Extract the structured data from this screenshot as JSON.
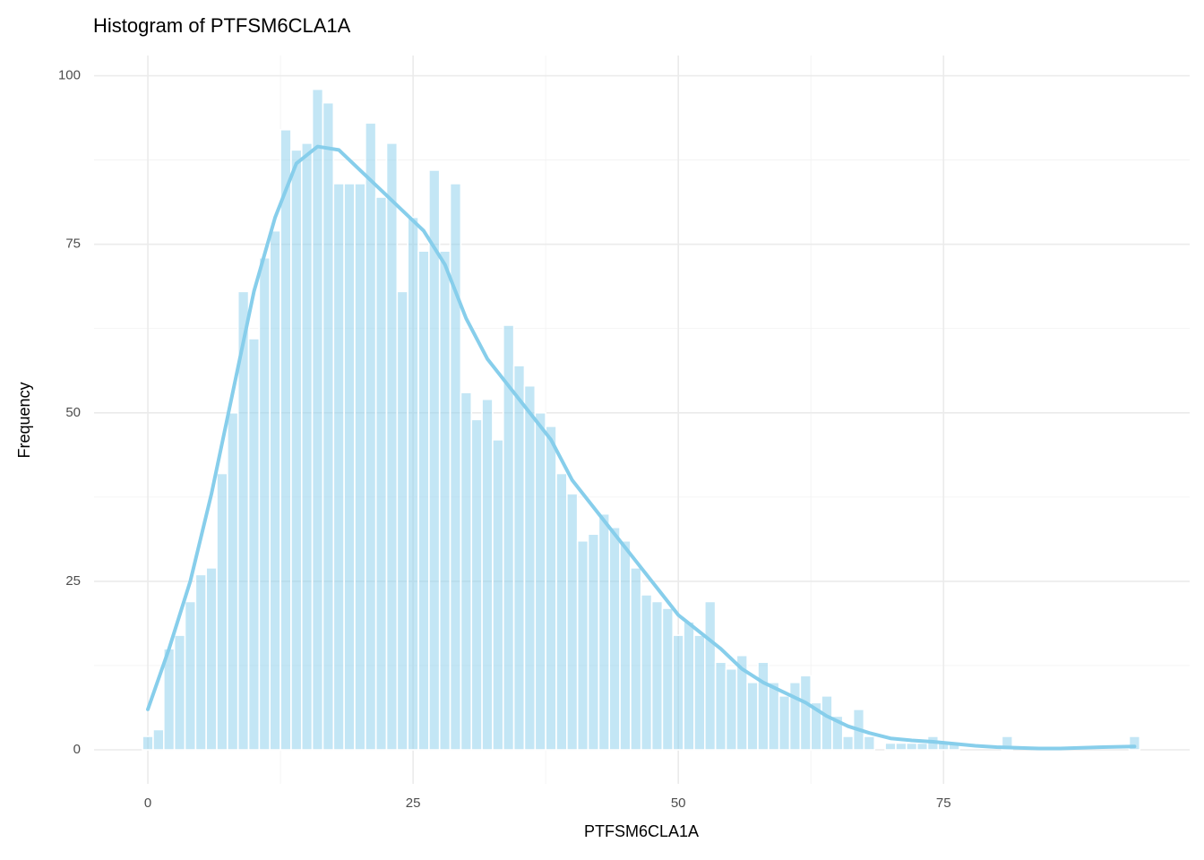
{
  "chart_data": {
    "type": "histogram",
    "title": "Histogram of PTFSM6CLA1A",
    "x_label": "PTFSM6CLA1A",
    "y_label": "Frequency",
    "bins": [
      -0.5,
      0.5,
      1.5,
      2.5,
      3.5,
      4.5,
      5.5,
      6.5,
      7.5,
      8.5,
      9.5,
      10.5,
      11.5,
      12.5,
      13.5,
      14.5,
      15.5,
      16.5,
      17.5,
      18.5,
      19.5,
      20.5,
      21.5,
      22.5,
      23.5,
      24.5,
      25.5,
      26.5,
      27.5,
      28.5,
      29.5,
      30.5,
      31.5,
      32.5,
      33.5,
      34.5,
      35.5,
      36.5,
      37.5,
      38.5,
      39.5,
      40.5,
      41.5,
      42.5,
      43.5,
      44.5,
      45.5,
      46.5,
      47.5,
      48.5,
      49.5,
      50.5,
      51.5,
      52.5,
      53.5,
      54.5,
      55.5,
      56.5,
      57.5,
      58.5,
      59.5,
      60.5,
      61.5,
      62.5,
      63.5,
      64.5,
      65.5,
      66.5,
      67.5,
      68.5,
      69.5,
      70.5,
      71.5,
      72.5,
      73.5,
      74.5,
      75.5,
      76.5,
      77.5,
      78.5,
      79.5,
      80.5,
      81.5,
      82.5,
      83.5,
      84.5,
      85.5,
      86.5,
      87.5,
      88.5,
      89.5,
      90.5,
      91.5,
      92.5,
      93.5
    ],
    "counts": [
      2,
      3,
      15,
      17,
      22,
      26,
      27,
      41,
      50,
      68,
      61,
      73,
      77,
      92,
      89,
      90,
      98,
      96,
      84,
      84,
      84,
      93,
      82,
      90,
      68,
      79,
      74,
      86,
      74,
      84,
      53,
      49,
      52,
      46,
      63,
      57,
      54,
      50,
      48,
      41,
      38,
      31,
      32,
      35,
      33,
      31,
      27,
      23,
      22,
      21,
      17,
      19,
      17,
      22,
      13,
      12,
      14,
      10,
      13,
      10,
      8,
      10,
      11,
      7,
      8,
      5,
      2,
      6,
      2,
      0,
      1,
      1,
      1,
      1,
      2,
      1,
      1,
      0,
      0,
      0,
      0,
      2,
      0,
      0,
      0,
      0,
      0,
      0,
      0,
      0,
      0,
      0,
      0,
      2
    ],
    "color": "#87ceeb",
    "density_curve": {
      "x": [
        0,
        2,
        4,
        6,
        8,
        10,
        12,
        14,
        16,
        18,
        20,
        22,
        24,
        26,
        28,
        30,
        32,
        34,
        36,
        38,
        40,
        42,
        44,
        46,
        48,
        50,
        52,
        54,
        56,
        58,
        60,
        62,
        64,
        66,
        68,
        70,
        72,
        74,
        76,
        78,
        80,
        82,
        84,
        86,
        88,
        90,
        93
      ],
      "y": [
        6,
        15,
        25,
        38,
        53,
        68,
        79,
        87,
        89.5,
        89,
        86,
        83,
        80,
        77,
        72,
        64,
        58,
        54,
        50,
        46,
        40,
        36,
        32,
        28,
        24,
        20,
        17.5,
        15,
        12,
        10,
        8.5,
        7,
        5,
        3.5,
        2.5,
        1.7,
        1.4,
        1.2,
        0.9,
        0.6,
        0.4,
        0.3,
        0.2,
        0.2,
        0.3,
        0.4,
        0.5
      ]
    },
    "xlim": [
      -5.07,
      98.2
    ],
    "ylim": [
      -5.05,
      103
    ],
    "xticks": [
      0,
      25,
      50,
      75
    ],
    "yticks": [
      0,
      25,
      50,
      75,
      100
    ],
    "grid": true
  }
}
